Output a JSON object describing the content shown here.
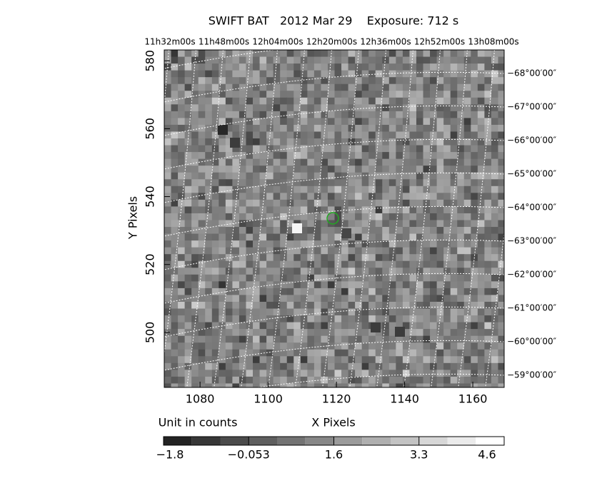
{
  "chart_data": {
    "type": "image",
    "title": "SWIFT BAT   2012 Mar 29    Exposure: 712 s",
    "x_label": "X Pixels",
    "y_label": "Y Pixels",
    "unit_label": "Unit in counts",
    "xlim": [
      1069.5,
      1169.2
    ],
    "xticks": [
      1080,
      1100,
      1120,
      1140,
      1160
    ],
    "ylim": [
      483.8,
      583.2
    ],
    "yticks": [
      500,
      520,
      540,
      560,
      580
    ],
    "ra_labels": [
      "11h32m00s",
      "11h48m00s",
      "12h04m00s",
      "12h20m00s",
      "12h36m00s",
      "12h52m00s",
      "13h08m00s"
    ],
    "dec_labels": [
      "−68°00′00″",
      "−67°00′00″",
      "−66°00′00″",
      "−65°00′00″",
      "−64°00′00″",
      "−63°00′00″",
      "−62°00′00″",
      "−61°00′00″",
      "−60°00′00″",
      "−59°00′00″"
    ],
    "colorbar_ticks": [
      {
        "value": -1.8,
        "label": "−1.8"
      },
      {
        "value": -0.053,
        "label": "−0.053"
      },
      1.6,
      3.3,
      4.6
    ]
  }
}
